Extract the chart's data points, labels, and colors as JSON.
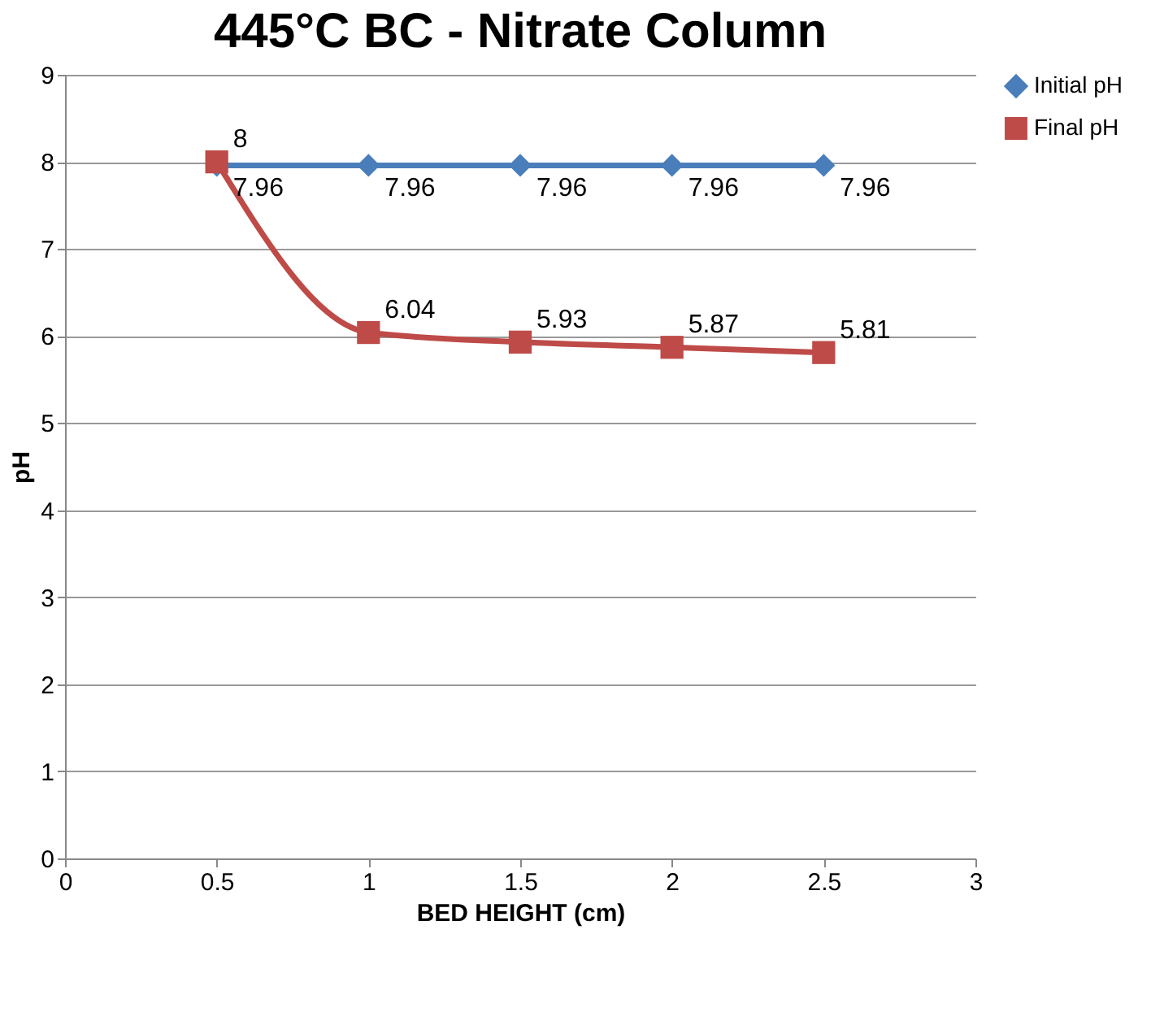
{
  "chart_data": {
    "type": "line",
    "title": "445°C BC - Nitrate Column",
    "xlabel": "BED HEIGHT (cm)",
    "ylabel": "pH",
    "x": [
      0.5,
      1,
      1.5,
      2,
      2.5
    ],
    "series": [
      {
        "name": "Initial pH",
        "color": "#4a7ebb",
        "marker": "diamond",
        "values": [
          7.96,
          7.96,
          7.96,
          7.96,
          7.96
        ]
      },
      {
        "name": "Final pH",
        "color": "#be4b48",
        "marker": "square",
        "values": [
          8,
          6.04,
          5.93,
          5.87,
          5.81
        ]
      }
    ],
    "xlim": [
      0,
      3
    ],
    "xticks": [
      0,
      0.5,
      1,
      1.5,
      2,
      2.5,
      3
    ],
    "ylim": [
      0,
      9
    ],
    "yticks": [
      0,
      1,
      2,
      3,
      4,
      5,
      6,
      7,
      8,
      9
    ],
    "grid": "y",
    "legend": "right",
    "data_labels": true,
    "line_style": "solid"
  }
}
